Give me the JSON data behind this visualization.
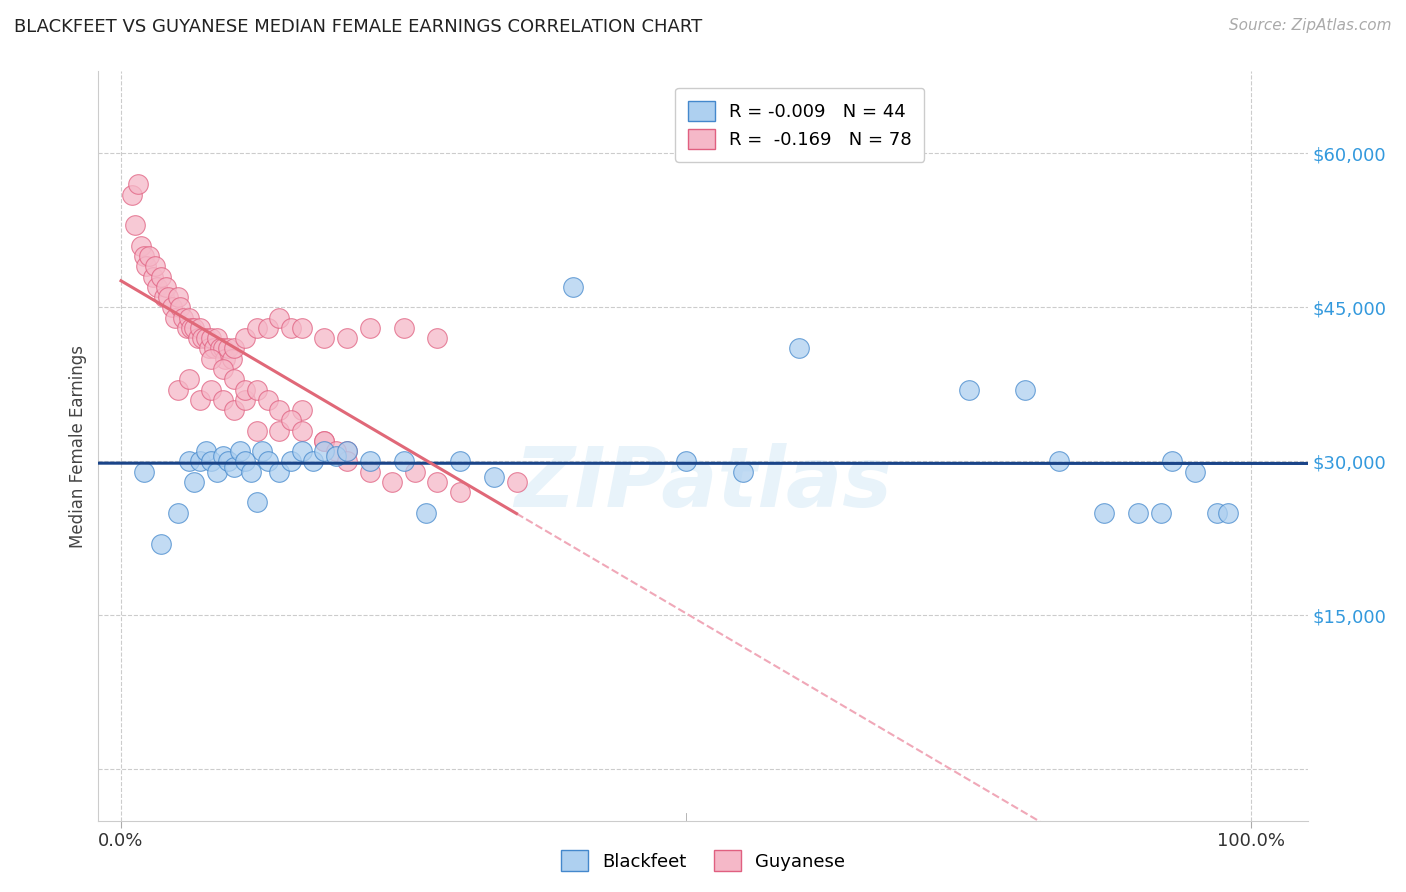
{
  "title": "BLACKFEET VS GUYANESE MEDIAN FEMALE EARNINGS CORRELATION CHART",
  "source": "Source: ZipAtlas.com",
  "ylabel": "Median Female Earnings",
  "watermark": "ZIPatlas",
  "y_ticks": [
    0,
    15000,
    30000,
    45000,
    60000
  ],
  "y_tick_labels_right": [
    "",
    "$15,000",
    "$30,000",
    "$45,000",
    "$60,000"
  ],
  "ylim": [
    -5000,
    68000
  ],
  "xlim": [
    -0.02,
    1.05
  ],
  "legend_blue_R": "R = -0.009",
  "legend_blue_N": "N = 44",
  "legend_pink_R": "R =  -0.169",
  "legend_pink_N": "N = 78",
  "blue_fill": "#aed0f0",
  "pink_fill": "#f5b8c8",
  "blue_edge": "#4488cc",
  "pink_edge": "#e06080",
  "blue_line_color": "#1a4488",
  "pink_line_solid_color": "#e06878",
  "pink_line_dash_color": "#f0a8b8",
  "grid_color": "#cccccc",
  "background_color": "#ffffff",
  "blue_color_label": "#3399dd",
  "blue_scatter_x": [
    0.02,
    0.035,
    0.05,
    0.06,
    0.065,
    0.07,
    0.075,
    0.08,
    0.085,
    0.09,
    0.095,
    0.1,
    0.105,
    0.11,
    0.115,
    0.12,
    0.125,
    0.13,
    0.14,
    0.15,
    0.16,
    0.17,
    0.18,
    0.19,
    0.2,
    0.22,
    0.25,
    0.27,
    0.3,
    0.33,
    0.4,
    0.5,
    0.55,
    0.6,
    0.75,
    0.8,
    0.83,
    0.87,
    0.9,
    0.92,
    0.93,
    0.95,
    0.97,
    0.98
  ],
  "blue_scatter_y": [
    29000,
    22000,
    25000,
    30000,
    28000,
    30000,
    31000,
    30000,
    29000,
    30500,
    30000,
    29500,
    31000,
    30000,
    29000,
    26000,
    31000,
    30000,
    29000,
    30000,
    31000,
    30000,
    31000,
    30500,
    31000,
    30000,
    30000,
    25000,
    30000,
    28500,
    47000,
    30000,
    29000,
    41000,
    37000,
    37000,
    30000,
    25000,
    25000,
    25000,
    30000,
    29000,
    25000,
    25000
  ],
  "pink_scatter_x": [
    0.01,
    0.012,
    0.015,
    0.018,
    0.02,
    0.022,
    0.025,
    0.028,
    0.03,
    0.032,
    0.035,
    0.038,
    0.04,
    0.042,
    0.045,
    0.048,
    0.05,
    0.052,
    0.055,
    0.058,
    0.06,
    0.062,
    0.065,
    0.068,
    0.07,
    0.072,
    0.075,
    0.078,
    0.08,
    0.082,
    0.085,
    0.088,
    0.09,
    0.092,
    0.095,
    0.098,
    0.1,
    0.11,
    0.12,
    0.13,
    0.14,
    0.15,
    0.16,
    0.18,
    0.2,
    0.22,
    0.25,
    0.28,
    0.05,
    0.06,
    0.07,
    0.08,
    0.09,
    0.1,
    0.11,
    0.12,
    0.14,
    0.16,
    0.18,
    0.2,
    0.08,
    0.09,
    0.1,
    0.11,
    0.12,
    0.13,
    0.14,
    0.15,
    0.16,
    0.18,
    0.19,
    0.2,
    0.22,
    0.24,
    0.26,
    0.28,
    0.3,
    0.35
  ],
  "pink_scatter_y": [
    56000,
    53000,
    57000,
    51000,
    50000,
    49000,
    50000,
    48000,
    49000,
    47000,
    48000,
    46000,
    47000,
    46000,
    45000,
    44000,
    46000,
    45000,
    44000,
    43000,
    44000,
    43000,
    43000,
    42000,
    43000,
    42000,
    42000,
    41000,
    42000,
    41000,
    42000,
    41000,
    41000,
    40000,
    41000,
    40000,
    41000,
    42000,
    43000,
    43000,
    44000,
    43000,
    43000,
    42000,
    42000,
    43000,
    43000,
    42000,
    37000,
    38000,
    36000,
    37000,
    36000,
    35000,
    36000,
    33000,
    33000,
    35000,
    32000,
    31000,
    40000,
    39000,
    38000,
    37000,
    37000,
    36000,
    35000,
    34000,
    33000,
    32000,
    31000,
    30000,
    29000,
    28000,
    29000,
    28000,
    27000,
    28000
  ]
}
